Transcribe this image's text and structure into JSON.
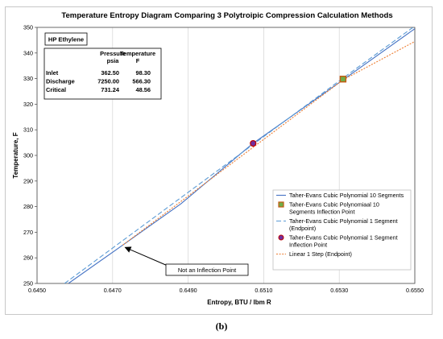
{
  "chart_data": {
    "type": "line",
    "title": "Temperature Entropy Diagram Comparing 3 Polytroipic Compression Calculation Methods",
    "xlabel": "Entropy, BTU / lbm R",
    "ylabel": "Temperature, F",
    "xlim": [
      0.645,
      0.655
    ],
    "ylim": [
      250,
      350
    ],
    "x_ticks": [
      "0.6450",
      "0.6470",
      "0.6490",
      "0.6510",
      "0.6530",
      "0.6550"
    ],
    "y_ticks": [
      "250",
      "260",
      "270",
      "280",
      "290",
      "300",
      "310",
      "320",
      "330",
      "340",
      "350"
    ],
    "grid": "vertical",
    "legend_position": "bottom-right",
    "series": [
      {
        "name": "Taher-Evans Cubic Polynomial 10 Segments",
        "style": "solid",
        "color": "#4472c4",
        "points": [
          [
            0.64583,
            250
          ],
          [
            0.64727,
            265
          ],
          [
            0.6488,
            281
          ],
          [
            0.6507,
            304.5
          ],
          [
            0.6531,
            329.5
          ],
          [
            0.65505,
            350
          ]
        ]
      },
      {
        "name": "Taher-Evans Cubic Polynomiaal 10 Segments Inflection Point",
        "style": "marker-square",
        "color": "#c55a11",
        "fill": "#70ad47",
        "points": [
          [
            0.6531,
            329.8
          ]
        ]
      },
      {
        "name": "Taher-Evans Cubic Polynomial 1 Segment (Endpoint)",
        "style": "dashed",
        "color": "#5b9bd5",
        "points": [
          [
            0.64573,
            250
          ],
          [
            0.6531,
            330.2
          ],
          [
            0.65495,
            350
          ]
        ]
      },
      {
        "name": "Taher-Evans Cubic Polynomial 1 Segment Inflection Point",
        "style": "marker-circle",
        "color": "#c00000",
        "fill": "#7030a0",
        "points": [
          [
            0.65072,
            304.7
          ]
        ]
      },
      {
        "name": "Linear 1 Step (Endpoint)",
        "style": "dotted",
        "color": "#ed7d31",
        "points": [
          [
            0.64727,
            265
          ],
          [
            0.6531,
            329.5
          ],
          [
            0.655,
            344.5
          ]
        ]
      }
    ],
    "annotation": {
      "text": "Not an Inflection Point",
      "target": [
        0.64727,
        265
      ]
    },
    "table": {
      "label": "HP Ethylene",
      "headers": [
        "",
        "Pressure\npsia",
        "Temperature\nF"
      ],
      "rows": [
        [
          "Inlet",
          "362.50",
          "98.30"
        ],
        [
          "Discharge",
          "7250.00",
          "566.30"
        ],
        [
          "Critical",
          "731.24",
          "48.56"
        ]
      ]
    }
  },
  "caption": "(b)"
}
